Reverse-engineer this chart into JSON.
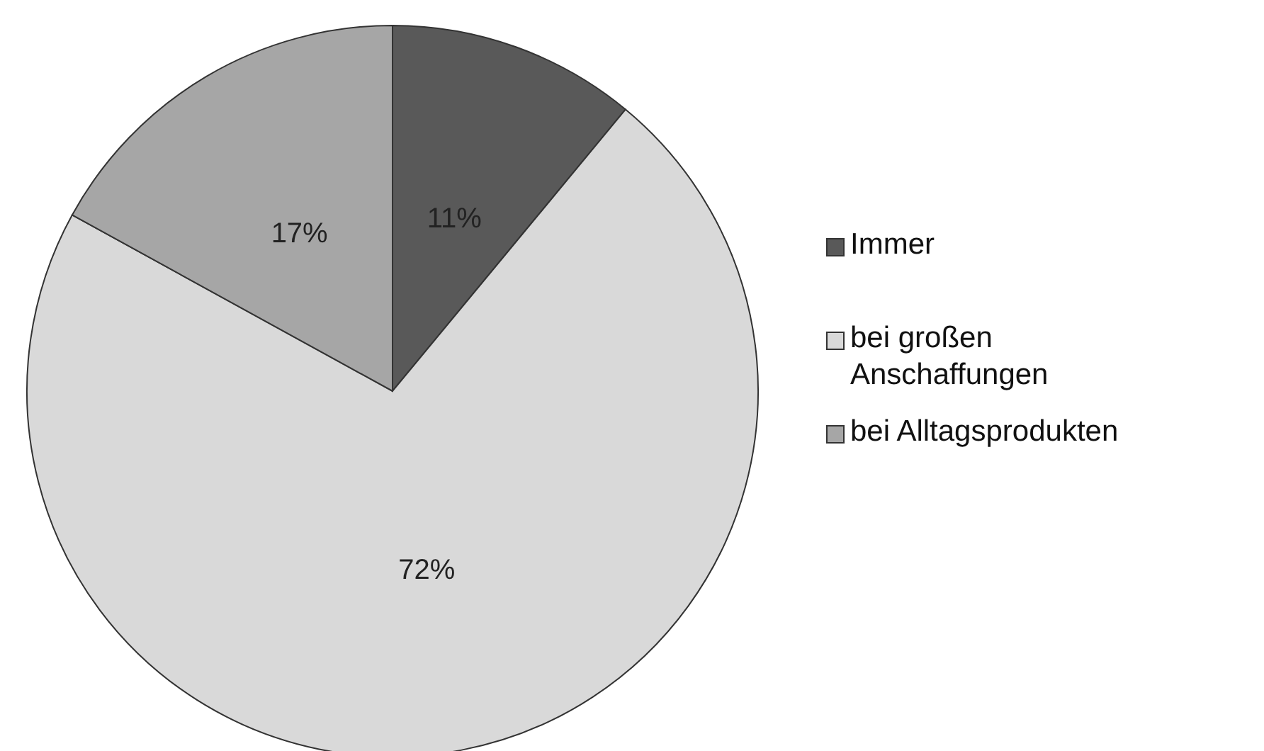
{
  "chart_data": {
    "type": "pie",
    "categories": [
      "Immer",
      "bei großen Anschaffungen",
      "bei Alltagsprodukten"
    ],
    "values": [
      11,
      72,
      17
    ],
    "colors": [
      "#595959",
      "#d9d9d9",
      "#a6a6a6"
    ],
    "value_labels": [
      "11%",
      "72%",
      "17%"
    ],
    "legend": "right"
  }
}
